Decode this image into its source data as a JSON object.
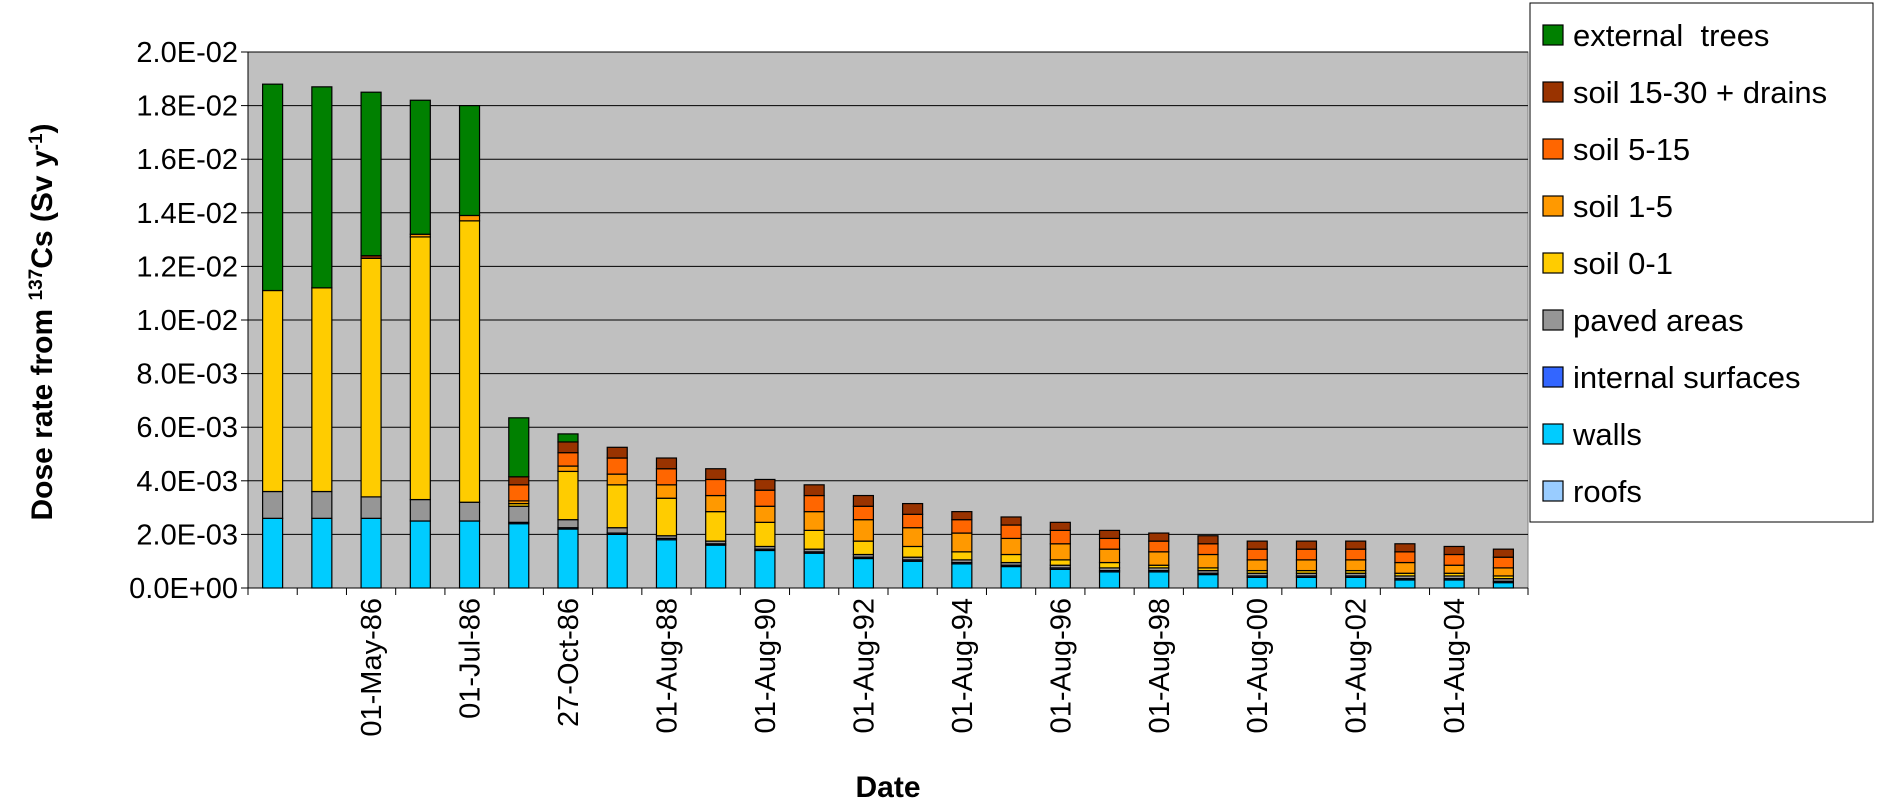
{
  "chart_data": {
    "type": "bar",
    "stacked": true,
    "title": "",
    "xlabel": "Date",
    "ylabel_prefix": "Dose rate from ",
    "ylabel_isotope_mass": "137",
    "ylabel_isotope": "Cs",
    "ylabel_unit_open": " (Sv y",
    "ylabel_unit_exp": "-1",
    "ylabel_unit_close": ")",
    "ylim": [
      0,
      0.02
    ],
    "yticks": [
      0,
      0.002,
      0.004,
      0.006,
      0.008,
      0.01,
      0.012,
      0.014,
      0.016,
      0.018,
      0.02
    ],
    "ytick_labels": [
      "0.0E+00",
      "2.0E-03",
      "4.0E-03",
      "6.0E-03",
      "8.0E-03",
      "1.0E-02",
      "1.2E-02",
      "1.4E-02",
      "1.6E-02",
      "1.8E-02",
      "2.0E-02"
    ],
    "grid": true,
    "plot_background": "#c0c0c0",
    "legend_position": "top-right",
    "categories": [
      "",
      "",
      "01-May-86",
      "",
      "01-Jul-86",
      "",
      "27-Oct-86",
      "",
      "01-Aug-88",
      "",
      "01-Aug-90",
      "",
      "01-Aug-92",
      "",
      "01-Aug-94",
      "",
      "01-Aug-96",
      "",
      "01-Aug-98",
      "",
      "01-Aug-00",
      "",
      "01-Aug-02",
      "",
      "01-Aug-04",
      ""
    ],
    "series": [
      {
        "name": "roofs",
        "color": "#99ccff",
        "values": [
          0,
          0,
          0,
          0,
          0,
          0,
          0,
          0,
          0,
          0,
          0,
          0,
          0,
          0,
          0,
          0,
          0,
          0,
          0,
          0,
          0,
          0,
          0,
          0,
          0,
          0
        ]
      },
      {
        "name": "walls",
        "color": "#00ccff",
        "values": [
          0.0026,
          0.0026,
          0.0026,
          0.0025,
          0.0025,
          0.0024,
          0.0022,
          0.002,
          0.0018,
          0.0016,
          0.0014,
          0.0013,
          0.0011,
          0.001,
          0.0009,
          0.0008,
          0.0007,
          0.0006,
          0.0006,
          0.0005,
          0.0004,
          0.0004,
          0.0004,
          0.0003,
          0.0003,
          0.0002
        ]
      },
      {
        "name": "internal surfaces",
        "color": "#3366ff",
        "values": [
          0,
          0,
          0,
          0,
          0,
          5e-05,
          5e-05,
          5e-05,
          5e-05,
          5e-05,
          5e-05,
          5e-05,
          5e-05,
          5e-05,
          5e-05,
          5e-05,
          5e-05,
          5e-05,
          5e-05,
          5e-05,
          5e-05,
          5e-05,
          5e-05,
          5e-05,
          5e-05,
          5e-05
        ]
      },
      {
        "name": "paved areas",
        "color": "#969696",
        "values": [
          0.001,
          0.001,
          0.0008,
          0.0008,
          0.0007,
          0.0006,
          0.0003,
          0.0002,
          0.0001,
          0.0001,
          0.0001,
          0.0001,
          0.0001,
          0.0001,
          0.0001,
          0.0001,
          0.0001,
          0.0001,
          0.0001,
          0.0001,
          0.0001,
          0.0001,
          0.0001,
          0.0001,
          0.0001,
          0.0001
        ]
      },
      {
        "name": "soil 0-1",
        "color": "#ffcc00",
        "values": [
          0.0075,
          0.0076,
          0.0089,
          0.0098,
          0.0105,
          0.0001,
          0.0018,
          0.0016,
          0.0014,
          0.0011,
          0.0009,
          0.0007,
          0.0005,
          0.0004,
          0.0003,
          0.0003,
          0.0002,
          0.0002,
          0.0001,
          0.0001,
          0.0001,
          0.0001,
          0.0001,
          0.0001,
          0.0001,
          0.0001
        ]
      },
      {
        "name": "soil 1-5",
        "color": "#ff9900",
        "values": [
          0,
          0,
          0,
          0.0001,
          0.0002,
          0.0001,
          0.0002,
          0.0004,
          0.0005,
          0.0006,
          0.0006,
          0.0007,
          0.0008,
          0.0007,
          0.0007,
          0.0006,
          0.0006,
          0.0005,
          0.0005,
          0.0005,
          0.0004,
          0.0004,
          0.0004,
          0.0004,
          0.0003,
          0.0003
        ]
      },
      {
        "name": "soil 5-15",
        "color": "#ff6600",
        "values": [
          0,
          0,
          0,
          0,
          0,
          0.0006,
          0.0005,
          0.0006,
          0.0006,
          0.0006,
          0.0006,
          0.0006,
          0.0005,
          0.0005,
          0.0005,
          0.0005,
          0.0005,
          0.0004,
          0.0004,
          0.0004,
          0.0004,
          0.0004,
          0.0004,
          0.0004,
          0.0004,
          0.0004
        ]
      },
      {
        "name": "soil 15-30 + drains",
        "color": "#993300",
        "values": [
          0,
          0,
          0.0001,
          0,
          0,
          0.0003,
          0.0004,
          0.0004,
          0.0004,
          0.0004,
          0.0004,
          0.0004,
          0.0004,
          0.0004,
          0.0003,
          0.0003,
          0.0003,
          0.0003,
          0.0003,
          0.0003,
          0.0003,
          0.0003,
          0.0003,
          0.0003,
          0.0003,
          0.0003
        ]
      },
      {
        "name": "external  trees",
        "color": "#008000",
        "values": [
          0.0077,
          0.0075,
          0.0061,
          0.005,
          0.0041,
          0.0022,
          0.0003,
          0,
          0,
          0,
          0,
          0,
          0,
          0,
          0,
          0,
          0,
          0,
          0,
          0,
          0,
          0,
          0,
          0,
          0,
          0
        ]
      }
    ]
  }
}
